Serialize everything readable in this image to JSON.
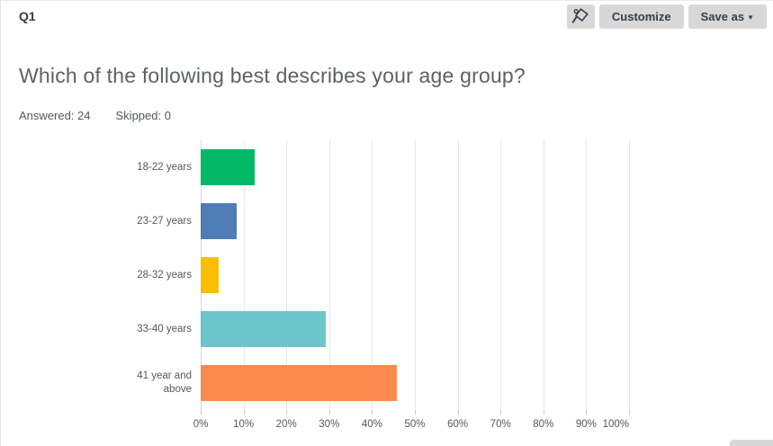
{
  "header": {
    "question_number": "Q1",
    "toolbar": {
      "customize_label": "Customize",
      "save_as_label": "Save as",
      "save_as_caret": "▼"
    }
  },
  "question": {
    "title": "Which of the following best describes your age group?",
    "answered": {
      "label": "Answered:",
      "value": "24"
    },
    "skipped": {
      "label": "Skipped:",
      "value": "0"
    }
  },
  "chart_data": {
    "type": "bar",
    "orientation": "horizontal",
    "title": "Which of the following best describes your age group?",
    "categories": [
      "18-22 years",
      "23-27 years",
      "28-32 years",
      "33-40 years",
      "41 year and above"
    ],
    "values": [
      12.5,
      8.33,
      4.17,
      29.17,
      45.83
    ],
    "colors": [
      "#00b865",
      "#507cb5",
      "#f9be00",
      "#6bc6cb",
      "#fb8a4e"
    ],
    "xlabel": "",
    "ylabel": "",
    "xlim": [
      0,
      100
    ],
    "x_ticks": [
      0,
      10,
      20,
      30,
      40,
      50,
      60,
      70,
      80,
      90,
      100
    ],
    "x_tick_labels": [
      "0%",
      "10%",
      "20%",
      "30%",
      "40%",
      "50%",
      "60%",
      "70%",
      "80%",
      "90%",
      "100%"
    ],
    "grid": true,
    "legend": false
  }
}
